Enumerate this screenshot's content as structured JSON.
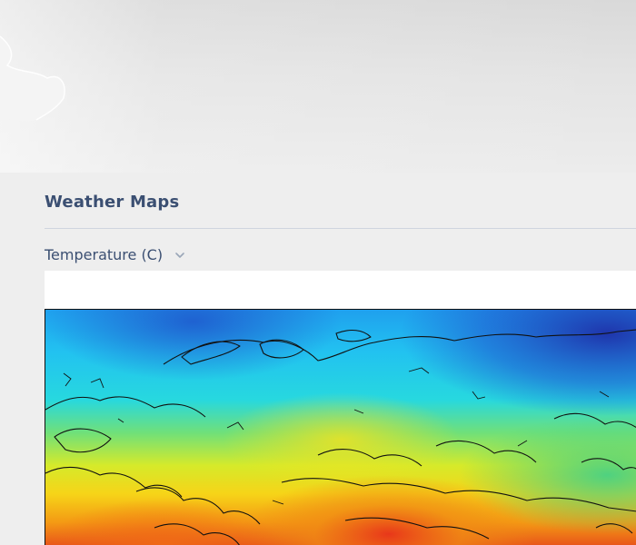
{
  "section": {
    "title": "Weather Maps"
  },
  "map_selector": {
    "selected": "Temperature (C)",
    "chevron_icon": "chevron-down-icon"
  },
  "map": {
    "type": "temperature-heatmap",
    "palette": [
      "#1e2fb4",
      "#1f6fe0",
      "#1fb4f0",
      "#22d8e8",
      "#5fe08a",
      "#d8ec2a",
      "#f8d21a",
      "#f58a12",
      "#e0341a"
    ]
  },
  "colors": {
    "heading": "#3b4f72",
    "divider": "#cfd5df",
    "page_bg": "#eeeeee"
  }
}
